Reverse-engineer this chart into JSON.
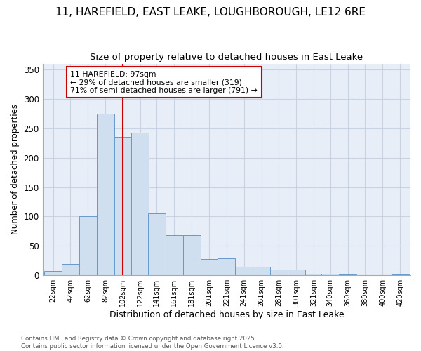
{
  "title1": "11, HAREFIELD, EAST LEAKE, LOUGHBOROUGH, LE12 6RE",
  "title2": "Size of property relative to detached houses in East Leake",
  "xlabel": "Distribution of detached houses by size in East Leake",
  "ylabel": "Number of detached properties",
  "bar_values": [
    7,
    19,
    100,
    275,
    235,
    243,
    105,
    68,
    68,
    28,
    29,
    15,
    15,
    10,
    10,
    3,
    3,
    2,
    0,
    0,
    2
  ],
  "bar_labels": [
    "22sqm",
    "42sqm",
    "62sqm",
    "82sqm",
    "102sqm",
    "122sqm",
    "141sqm",
    "161sqm",
    "181sqm",
    "201sqm",
    "221sqm",
    "241sqm",
    "261sqm",
    "281sqm",
    "301sqm",
    "321sqm",
    "340sqm",
    "360sqm",
    "380sqm",
    "400sqm",
    "420sqm"
  ],
  "bar_color": "#d0dff0",
  "bar_edge_color": "#6699cc",
  "red_line_x": 102,
  "annotation_text": "11 HAREFIELD: 97sqm\n← 29% of detached houses are smaller (319)\n71% of semi-detached houses are larger (791) →",
  "annotation_box_color": "#ffffff",
  "annotation_box_edge": "#cc0000",
  "vline_color": "#cc0000",
  "ylim": [
    0,
    360
  ],
  "yticks": [
    0,
    50,
    100,
    150,
    200,
    250,
    300,
    350
  ],
  "footnote": "Contains HM Land Registry data © Crown copyright and database right 2025.\nContains public sector information licensed under the Open Government Licence v3.0.",
  "bg_color": "#ffffff",
  "plot_bg_color": "#e8eef8",
  "grid_color": "#c8d4e4",
  "title_fontsize": 11,
  "subtitle_fontsize": 9.5
}
